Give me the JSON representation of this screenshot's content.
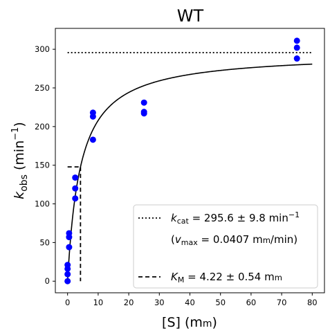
{
  "chart_data": {
    "type": "scatter",
    "title": "WT",
    "xlabel": {
      "main": "[S] (m",
      "unit_sc": "m",
      "close": ")"
    },
    "ylabel": {
      "k": "k",
      "sub": "obs",
      "rest": " (min",
      "sup": "−1",
      "close": ")"
    },
    "xlim": [
      -4,
      84
    ],
    "ylim": [
      -15,
      327
    ],
    "xticks": [
      0,
      10,
      20,
      30,
      40,
      50,
      60,
      70,
      80
    ],
    "yticks": [
      0,
      50,
      100,
      150,
      200,
      250,
      300
    ],
    "grid": false,
    "legend_position": "lower-right",
    "colors": {
      "points": "#0000ff",
      "lines": "#000000"
    },
    "points": [
      {
        "x": 0.0,
        "y": 0
      },
      {
        "x": 0.0,
        "y": 9
      },
      {
        "x": 0.0,
        "y": 16
      },
      {
        "x": 0.0,
        "y": 21
      },
      {
        "x": 0.5,
        "y": 44
      },
      {
        "x": 0.5,
        "y": 57
      },
      {
        "x": 0.5,
        "y": 62
      },
      {
        "x": 2.5,
        "y": 107
      },
      {
        "x": 2.5,
        "y": 120
      },
      {
        "x": 2.5,
        "y": 134
      },
      {
        "x": 8.3,
        "y": 183
      },
      {
        "x": 8.3,
        "y": 213
      },
      {
        "x": 8.3,
        "y": 218
      },
      {
        "x": 25,
        "y": 217
      },
      {
        "x": 25,
        "y": 219
      },
      {
        "x": 25,
        "y": 231
      },
      {
        "x": 75,
        "y": 288
      },
      {
        "x": 75,
        "y": 302
      },
      {
        "x": 75,
        "y": 311
      }
    ],
    "fit": {
      "model": "michaelis-menten",
      "kcat": 295.6,
      "km": 4.22,
      "x_range": [
        0,
        80
      ]
    },
    "kcat_line": {
      "y": 295.6,
      "x_range": [
        0,
        80
      ],
      "style": "dotted"
    },
    "km_line": {
      "x": 4.22,
      "y": 147.8,
      "x_start": 0,
      "style": "dashed"
    },
    "legend": {
      "kcat": {
        "k": "k",
        "sub": "cat",
        "text": " = 295.6 ± 9.8 min",
        "sup": "−1"
      },
      "vmax": {
        "open": "(",
        "v": "v",
        "sub": "max",
        "text": " = 0.0407 m",
        "unit_sc": "m",
        "close": "/min)"
      },
      "km": {
        "k": "K",
        "sub": "M",
        "text": " = 4.22 ± 0.54 m",
        "unit_sc": "m"
      }
    }
  }
}
